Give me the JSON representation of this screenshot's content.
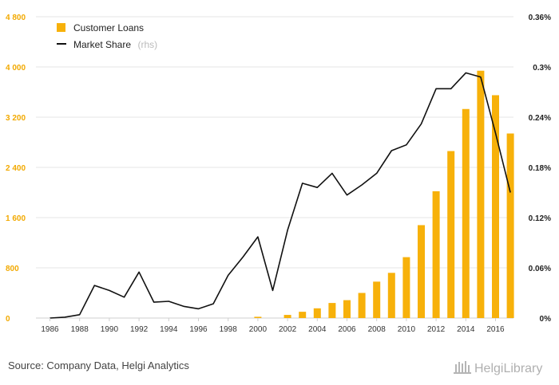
{
  "chart_data": {
    "type": "bar",
    "title": "",
    "x": [
      "1986",
      "1987",
      "1988",
      "1989",
      "1990",
      "1991",
      "1992",
      "1993",
      "1994",
      "1995",
      "1996",
      "1997",
      "1998",
      "1999",
      "2000",
      "2001",
      "2002",
      "2003",
      "2004",
      "2005",
      "2006",
      "2007",
      "2008",
      "2009",
      "2010",
      "2011",
      "2012",
      "2013",
      "2014",
      "2015",
      "2016",
      "2017"
    ],
    "x_tick_labels": [
      "1986",
      "1988",
      "1990",
      "1992",
      "1994",
      "1996",
      "1998",
      "2000",
      "2002",
      "2004",
      "2006",
      "2008",
      "2010",
      "2012",
      "2014",
      "2016"
    ],
    "y_left_ticks": [
      "0",
      "800",
      "1 600",
      "2 400",
      "3 200",
      "4 000",
      "4 800"
    ],
    "y_right_ticks": [
      "0%",
      "0.06%",
      "0.12%",
      "0.18%",
      "0.24%",
      "0.3%",
      "0.36%"
    ],
    "y_left_range": [
      0,
      4800
    ],
    "y_right_range": [
      0,
      0.36
    ],
    "grid": "horizontal",
    "legend_position": "top-left",
    "series": [
      {
        "name": "Customer Loans",
        "type": "bar",
        "axis": "left",
        "color": "#f7b10a",
        "values": [
          null,
          null,
          null,
          null,
          null,
          null,
          null,
          null,
          null,
          null,
          null,
          null,
          null,
          null,
          20,
          null,
          50,
          100,
          155,
          240,
          285,
          400,
          580,
          720,
          970,
          1480,
          2020,
          2660,
          3330,
          3940,
          3550,
          2940
        ]
      },
      {
        "name": "Market Share",
        "name_suffix": "(rhs)",
        "type": "line",
        "axis": "right",
        "color": "#111111",
        "values": [
          0.0,
          0.001,
          0.004,
          0.039,
          0.033,
          0.025,
          0.055,
          0.019,
          0.02,
          0.014,
          0.011,
          0.017,
          0.051,
          0.073,
          0.097,
          0.033,
          0.105,
          0.161,
          0.156,
          0.173,
          0.147,
          0.159,
          0.173,
          0.2,
          0.207,
          0.232,
          0.274,
          0.274,
          0.293,
          0.288,
          0.221,
          0.15
        ]
      }
    ]
  },
  "footer": {
    "source": "Source: Company Data, Helgi Analytics",
    "logo": "HelgiLibrary"
  }
}
